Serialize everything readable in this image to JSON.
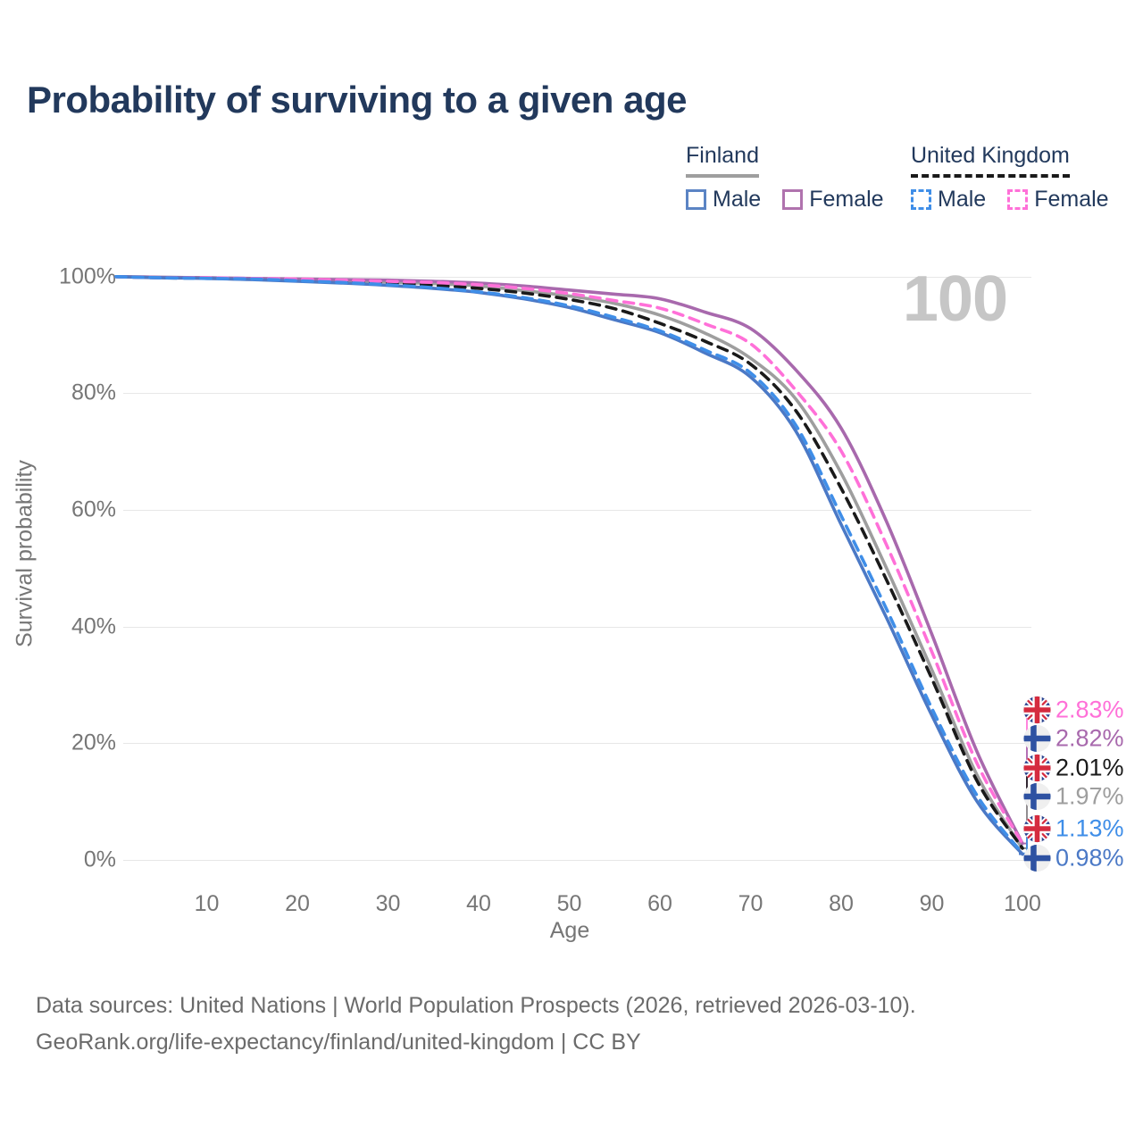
{
  "title": "Probability of surviving to a given age",
  "watermark": "100",
  "legend": {
    "groups": [
      {
        "label": "Finland",
        "line_style": "solid",
        "underline_color": "#9e9e9e",
        "items": [
          {
            "label": "Male",
            "color": "#5b84c4",
            "dashed": false
          },
          {
            "label": "Female",
            "color": "#b073ae",
            "dashed": false
          }
        ]
      },
      {
        "label": "United Kingdom",
        "line_style": "dashed",
        "underline_color": "#1a1a1a",
        "items": [
          {
            "label": "Male",
            "color": "#3f8ee8",
            "dashed": true
          },
          {
            "label": "Female",
            "color": "#ff70d8",
            "dashed": true
          }
        ]
      }
    ]
  },
  "chart_data": {
    "type": "line",
    "title": "Probability of surviving to a given age",
    "xlabel": "Age",
    "ylabel": "Survival probability",
    "xlim": [
      0,
      100
    ],
    "ylim": [
      0,
      100
    ],
    "grid": "horizontal",
    "x_ticks": [
      "10",
      "20",
      "30",
      "40",
      "50",
      "60",
      "70",
      "80",
      "90",
      "100"
    ],
    "x_tick_values": [
      10,
      20,
      30,
      40,
      50,
      60,
      70,
      80,
      90,
      100
    ],
    "y_ticks": [
      "0%",
      "20%",
      "40%",
      "60%",
      "80%",
      "100%"
    ],
    "y_tick_values": [
      0,
      20,
      40,
      60,
      80,
      100
    ],
    "x": [
      0,
      5,
      10,
      15,
      20,
      25,
      30,
      35,
      40,
      45,
      50,
      55,
      60,
      65,
      70,
      75,
      80,
      85,
      90,
      95,
      100
    ],
    "series": [
      {
        "name": "United Kingdom Female",
        "country": "uk",
        "sex": "female",
        "color": "#ff70d8",
        "dashed": true,
        "end_value_pct": 2.83,
        "values": [
          100,
          99.8,
          99.8,
          99.7,
          99.6,
          99.4,
          99.2,
          99.0,
          98.6,
          98.0,
          97.1,
          95.9,
          94.6,
          91.9,
          88.5,
          80.5,
          70.1,
          54.0,
          35.7,
          16.5,
          2.83
        ]
      },
      {
        "name": "Finland Female",
        "country": "fi",
        "sex": "female",
        "color": "#a869ad",
        "dashed": false,
        "end_value_pct": 2.82,
        "values": [
          100,
          99.9,
          99.8,
          99.7,
          99.6,
          99.5,
          99.4,
          99.2,
          98.9,
          98.4,
          97.7,
          97.0,
          96.2,
          93.9,
          91.1,
          84.0,
          74.0,
          58.0,
          38.7,
          18.5,
          2.82
        ]
      },
      {
        "name": "United Kingdom Total",
        "country": "uk",
        "sex": "total",
        "color": "#1a1a1a",
        "dashed": true,
        "end_value_pct": 2.01,
        "values": [
          100,
          99.8,
          99.75,
          99.6,
          99.4,
          99.2,
          98.9,
          98.5,
          98.0,
          97.2,
          96.1,
          94.5,
          92.0,
          88.9,
          85.0,
          77.0,
          63.7,
          48.0,
          31.1,
          13.5,
          2.01
        ]
      },
      {
        "name": "Finland Total",
        "country": "fi",
        "sex": "total",
        "color": "#9e9e9e",
        "dashed": false,
        "end_value_pct": 1.97,
        "values": [
          100,
          99.9,
          99.8,
          99.65,
          99.5,
          99.3,
          99.1,
          98.8,
          98.4,
          97.6,
          96.7,
          95.4,
          93.4,
          90.3,
          86.0,
          79.0,
          66.3,
          50.0,
          32.6,
          14.5,
          1.97
        ]
      },
      {
        "name": "United Kingdom Male",
        "country": "uk",
        "sex": "male",
        "color": "#3f8ee8",
        "dashed": true,
        "end_value_pct": 1.13,
        "values": [
          100,
          99.8,
          99.7,
          99.6,
          99.3,
          99.0,
          98.6,
          98.1,
          97.4,
          96.4,
          95.0,
          93.0,
          90.7,
          87.4,
          83.5,
          74.5,
          59.0,
          43.0,
          26.0,
          11.0,
          1.13
        ]
      },
      {
        "name": "Finland Male",
        "country": "fi",
        "sex": "male",
        "color": "#4b79c6",
        "dashed": false,
        "end_value_pct": 0.98,
        "values": [
          100,
          99.8,
          99.7,
          99.5,
          99.2,
          98.9,
          98.5,
          98.0,
          97.3,
          96.2,
          94.7,
          92.6,
          90.4,
          86.9,
          82.8,
          73.5,
          57.5,
          41.5,
          24.8,
          10.0,
          0.98
        ]
      }
    ]
  },
  "endpoints": [
    {
      "country": "uk",
      "value": "2.83%",
      "color": "#ff70d8"
    },
    {
      "country": "fi",
      "value": "2.82%",
      "color": "#a869ad"
    },
    {
      "country": "uk",
      "value": "2.01%",
      "color": "#1a1a1a"
    },
    {
      "country": "fi",
      "value": "1.97%",
      "color": "#9e9e9e"
    },
    {
      "country": "uk",
      "value": "1.13%",
      "color": "#3f8ee8"
    },
    {
      "country": "fi",
      "value": "0.98%",
      "color": "#4b79c6"
    }
  ],
  "footer": {
    "line1": "Data sources: United Nations | World Population Prospects (2026, retrieved 2026-03-10).",
    "line2": "GeoRank.org/life-expectancy/finland/united-kingdom | CC BY"
  }
}
